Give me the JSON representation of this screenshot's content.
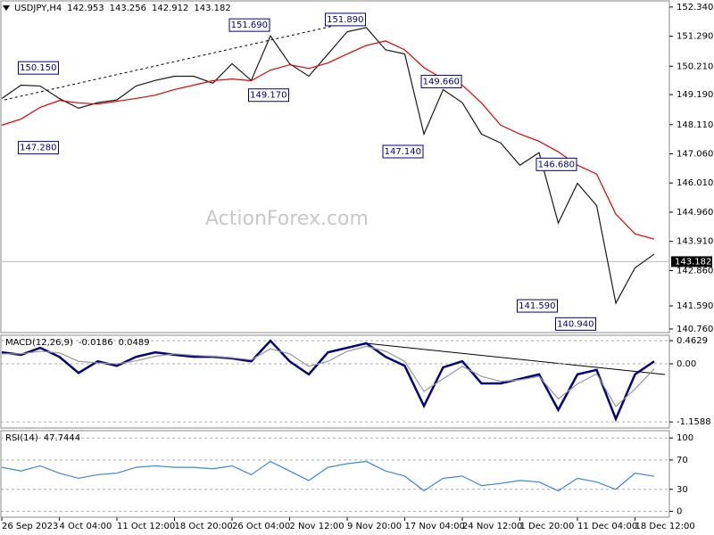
{
  "watermark": "ActionForex.com",
  "chart_data": [
    {
      "type": "line",
      "title": "USDJPY,H4",
      "ohlc": [
        142.953,
        143.256,
        142.912,
        143.182
      ],
      "categories": [
        "26 Sep 2023",
        null,
        null,
        "4 Oct 04:00",
        null,
        null,
        "11 Oct 12:00",
        null,
        null,
        "18 Oct 20:00",
        null,
        null,
        "26 Oct 04:00",
        null,
        null,
        "2 Nov 12:00",
        null,
        null,
        "9 Nov 20:00",
        null,
        null,
        "17 Nov 04:00",
        null,
        null,
        "24 Nov 12:00",
        null,
        null,
        "1 Dec 20:00",
        null,
        null,
        "11 Dec 04:00",
        null,
        null,
        "18 Dec 12:00",
        null
      ],
      "series": [
        {
          "color": "#1a1a1a",
          "values": [
            149.05,
            149.53,
            149.5,
            149.05,
            148.7,
            148.9,
            149.0,
            149.5,
            149.7,
            149.85,
            149.85,
            149.6,
            150.3,
            149.7,
            151.3,
            150.3,
            149.85,
            150.65,
            151.45,
            151.6,
            150.8,
            150.65,
            147.77,
            149.37,
            148.9,
            147.77,
            147.45,
            146.65,
            147.1,
            144.57,
            146.0,
            145.2,
            141.69,
            142.96,
            143.45
          ]
        },
        {
          "color": "#e00000",
          "values": [
            148.09,
            148.31,
            148.73,
            148.98,
            148.89,
            148.85,
            148.95,
            149.05,
            149.17,
            149.37,
            149.53,
            149.69,
            149.75,
            149.69,
            150.07,
            150.26,
            150.13,
            150.33,
            150.65,
            150.96,
            151.12,
            150.8,
            150.16,
            149.75,
            149.53,
            148.89,
            148.09,
            147.77,
            147.51,
            147.13,
            146.65,
            146.33,
            144.89,
            144.18,
            143.99
          ]
        }
      ],
      "annotations": [
        {
          "value": 150.15,
          "label": "150.150",
          "index": 3
        },
        {
          "value": 147.28,
          "label": "147.280",
          "index": 3
        },
        {
          "value": 151.69,
          "label": "151.690",
          "index": 14
        },
        {
          "value": 149.17,
          "label": "149.170",
          "index": 15
        },
        {
          "value": 151.89,
          "label": "151.890",
          "index": 19
        },
        {
          "value": 149.66,
          "label": "149.660",
          "index": 24
        },
        {
          "value": 147.14,
          "label": "147.140",
          "index": 22
        },
        {
          "value": 146.68,
          "label": "146.680",
          "index": 30
        },
        {
          "value": 141.59,
          "label": "141.590",
          "index": 29
        },
        {
          "value": 140.94,
          "label": "140.940",
          "index": 31
        }
      ],
      "ylim": [
        140.63,
        152.56
      ],
      "yticks": [
        {
          "value": 152.34,
          "label": "152.340"
        },
        {
          "value": 151.29,
          "label": "151.290"
        },
        {
          "value": 150.21,
          "label": "150.210"
        },
        {
          "value": 149.19,
          "label": "149.190"
        },
        {
          "value": 148.11,
          "label": "148.110"
        },
        {
          "value": 147.06,
          "label": "147.060"
        },
        {
          "value": 146.01,
          "label": "146.010"
        },
        {
          "value": 144.96,
          "label": "144.960"
        },
        {
          "value": 143.91,
          "label": "143.910"
        },
        {
          "value": 142.86,
          "label": "142.860"
        },
        {
          "value": 141.59,
          "label": "141.590"
        },
        {
          "value": 140.76,
          "label": "140.760"
        }
      ],
      "grid": false
    },
    {
      "type": "line",
      "title": "MACD(12,26,9)",
      "readout": [
        -0.0186,
        0.0489
      ],
      "series": [
        {
          "color": "#000080",
          "values": [
            0.23,
            0.18,
            0.32,
            0.14,
            -0.18,
            0.05,
            -0.04,
            0.14,
            0.23,
            0.18,
            0.14,
            0.14,
            0.11,
            0.05,
            0.46,
            0.05,
            -0.21,
            0.23,
            0.32,
            0.41,
            0.14,
            -0.04,
            -0.84,
            -0.07,
            0.05,
            -0.39,
            -0.39,
            -0.3,
            -0.21,
            -0.92,
            -0.21,
            -0.12,
            -1.1,
            -0.21,
            0.05
          ]
        },
        {
          "color": "#999999",
          "values": [
            0.2,
            0.2,
            0.25,
            0.22,
            0.05,
            0.02,
            0.0,
            0.06,
            0.15,
            0.2,
            0.17,
            0.15,
            0.12,
            0.08,
            0.3,
            0.2,
            -0.05,
            0.05,
            0.25,
            0.35,
            0.25,
            0.05,
            -0.55,
            -0.3,
            -0.05,
            -0.25,
            -0.35,
            -0.32,
            -0.25,
            -0.7,
            -0.4,
            -0.2,
            -0.85,
            -0.5,
            -0.1
          ]
        }
      ],
      "ylim": [
        -1.28,
        0.57
      ],
      "yticks": [
        0.4629,
        {
          "value": 0,
          "label": "0.00"
        },
        -1.1588
      ],
      "grid": true
    },
    {
      "type": "line",
      "title": "RSI(14)",
      "readout": [
        47.7444
      ],
      "series": [
        {
          "color": "#3a87d6",
          "values": [
            60,
            55,
            62,
            52,
            45,
            50,
            52,
            60,
            62,
            60,
            60,
            58,
            62,
            50,
            68,
            55,
            42,
            60,
            65,
            68,
            55,
            48,
            28,
            45,
            48,
            35,
            38,
            42,
            40,
            28,
            45,
            40,
            30,
            52,
            47.7
          ]
        }
      ],
      "ylim": [
        -8,
        110
      ],
      "yticks": [
        100,
        70,
        30,
        0
      ],
      "grid": true
    }
  ]
}
